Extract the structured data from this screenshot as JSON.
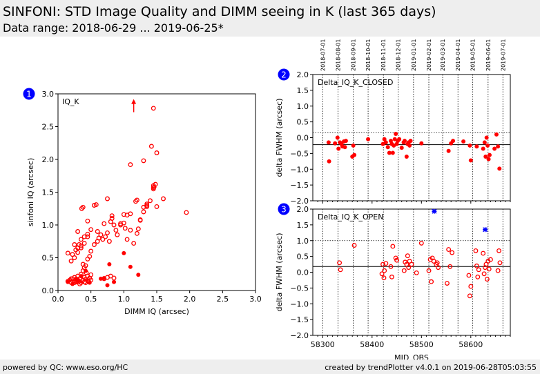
{
  "header": {
    "title": "SINFONI: STD Image Quality and DIMM seeing in K (last 365 days)",
    "subtitle": "Data range: 2018-06-29 ... 2019-06-25*"
  },
  "footer": {
    "left": "powered by QC: www.eso.org/HC",
    "right": "created by trendPlotter v4.0.1 on 2019-06-28T05:03:55"
  },
  "colors": {
    "data": "#ff0000",
    "highlight": "#0000ff",
    "badge": "#0000ff"
  },
  "chart_data": [
    {
      "id": "1",
      "type": "scatter",
      "label": "IQ_K",
      "xlabel": "DIMM IQ (arcsec)",
      "ylabel": "sinfoni IQ (arcsec)",
      "xlim": [
        0,
        3
      ],
      "ylim": [
        0,
        3
      ],
      "xticks": [
        "0.0",
        "0.5",
        "1.0",
        "1.5",
        "2.0",
        "2.5",
        "3.0"
      ],
      "yticks": [
        "0.0",
        "0.5",
        "1.0",
        "1.5",
        "2.0",
        "2.5",
        "3.0"
      ],
      "series": [
        {
          "marker": "open-circle",
          "x": [
            0.15,
            0.18,
            0.2,
            0.22,
            0.25,
            0.25,
            0.28,
            0.3,
            0.3,
            0.32,
            0.33,
            0.35,
            0.35,
            0.37,
            0.38,
            0.4,
            0.4,
            0.42,
            0.43,
            0.45,
            0.45,
            0.47,
            0.48,
            0.5,
            0.5,
            0.2,
            0.22,
            0.25,
            0.27,
            0.3,
            0.32,
            0.35,
            0.38,
            0.4,
            0.42,
            0.45,
            0.48,
            0.5,
            0.15,
            0.25,
            0.3,
            0.35,
            0.4,
            0.45,
            0.55,
            0.6,
            0.62,
            0.65,
            0.68,
            0.7,
            0.72,
            0.75,
            0.78,
            0.8,
            0.82,
            0.85,
            0.88,
            0.9,
            0.95,
            1.0,
            1.02,
            1.05,
            1.1,
            1.15,
            1.2,
            1.22,
            1.25,
            1.3,
            1.35,
            1.4,
            1.45,
            1.48,
            0.3,
            0.35,
            0.4,
            0.45,
            0.5,
            0.55,
            0.6,
            0.7,
            0.75,
            0.8,
            0.85,
            0.38,
            0.45,
            0.58,
            0.75,
            0.82,
            0.95,
            1.0,
            1.05,
            1.1,
            1.18,
            1.2,
            1.25,
            1.3,
            1.35,
            1.45,
            1.5,
            1.6,
            1.95,
            0.36,
            1.3,
            1.35,
            1.42,
            1.45,
            1.46,
            1.5,
            1.1,
            1.45,
            0.2,
            0.25,
            0.28,
            0.33,
            0.38,
            0.42,
            0.46
          ],
          "y": [
            0.14,
            0.16,
            0.12,
            0.18,
            0.15,
            0.2,
            0.13,
            0.16,
            0.22,
            0.14,
            0.18,
            0.12,
            0.25,
            0.15,
            0.3,
            0.13,
            0.2,
            0.17,
            0.27,
            0.15,
            0.22,
            0.13,
            0.19,
            0.16,
            0.24,
            0.45,
            0.55,
            0.5,
            0.62,
            0.58,
            0.7,
            0.65,
            0.4,
            0.35,
            0.38,
            0.48,
            0.52,
            0.6,
            0.57,
            0.7,
            0.65,
            0.68,
            0.72,
            0.82,
            0.7,
            0.75,
            0.8,
            0.85,
            0.78,
            1.02,
            0.82,
            0.88,
            0.75,
            1.05,
            1.1,
            1.0,
            0.92,
            0.85,
            1.02,
            1.16,
            0.95,
            0.78,
            0.92,
            0.72,
            0.87,
            0.94,
            1.07,
            1.2,
            1.28,
            1.37,
            1.55,
            1.62,
            0.9,
            0.78,
            0.82,
            0.86,
            0.93,
            1.3,
            0.9,
            0.18,
            0.2,
            0.22,
            0.19,
            1.27,
            1.06,
            1.31,
            1.4,
            1.14,
            1.0,
            1.03,
            1.15,
            1.17,
            1.36,
            1.38,
            1.08,
            1.27,
            1.32,
            1.57,
            2.1,
            1.4,
            1.19,
            1.25,
            1.98,
            1.3,
            2.2,
            1.6,
            1.58,
            1.28,
            1.92,
            2.78,
            0.18,
            0.12,
            0.14,
            0.1,
            0.16,
            0.12,
            0.14
          ]
        },
        {
          "marker": "filled-dot",
          "x": [
            0.15,
            0.22,
            0.3,
            0.35,
            0.42,
            0.48,
            0.65,
            0.7,
            0.75,
            0.78,
            0.85,
            1.0,
            1.1,
            1.22,
            0.28
          ],
          "y": [
            0.13,
            0.1,
            0.15,
            0.22,
            0.3,
            0.12,
            0.18,
            0.19,
            0.08,
            0.4,
            0.13,
            0.57,
            0.36,
            0.24,
            0.18
          ]
        }
      ],
      "arrow": {
        "x": 1.15,
        "from": 2.72,
        "to": 2.92
      }
    },
    {
      "id": "2",
      "type": "scatter",
      "label": "Delta_IQ_K_CLOSED",
      "ylabel": "delta FWHM (arcsec)",
      "xlim": [
        58280,
        58680
      ],
      "ylim": [
        -2,
        2
      ],
      "yticks": [
        "−2.0",
        "−1.5",
        "−1.0",
        "−0.5",
        "0.0",
        "0.5",
        "1.0",
        "1.5",
        "2.0"
      ],
      "median_line": -0.22,
      "upper_line": 0.15,
      "date_labels": [
        "2018-07-01",
        "2018-08-01",
        "2018-09-01",
        "2018-10-01",
        "2018-11-01",
        "2018-12-01",
        "2019-01-01",
        "2019-02-01",
        "2019-03-01",
        "2019-04-01",
        "2019-05-01",
        "2019-06-01",
        "2019-07-01"
      ],
      "date_mjd": [
        58300,
        58331,
        58362,
        58392,
        58423,
        58453,
        58484,
        58515,
        58543,
        58574,
        58604,
        58635,
        58665
      ],
      "series": [
        {
          "marker": "filled-dot",
          "x": [
            58312,
            58313,
            58325,
            58330,
            58332,
            58335,
            58338,
            58340,
            58343,
            58345,
            58347,
            58360,
            58362,
            58364,
            58392,
            58422,
            58425,
            58428,
            58432,
            58435,
            58438,
            58440,
            58442,
            58444,
            58446,
            58448,
            58450,
            58452,
            58455,
            58460,
            58464,
            58466,
            58470,
            58472,
            58474,
            58476,
            58478,
            58500,
            58555,
            58560,
            58564,
            58585,
            58598,
            58600,
            58612,
            58625,
            58628,
            58630,
            58632,
            58634,
            58636,
            58638,
            58648,
            58652,
            58655,
            58658
          ],
          "y": [
            -0.15,
            -0.75,
            -0.18,
            0.0,
            -0.35,
            -0.15,
            -0.2,
            -0.28,
            -0.12,
            -0.3,
            -0.1,
            -0.6,
            -0.25,
            -0.55,
            -0.05,
            -0.2,
            -0.05,
            -0.15,
            -0.3,
            -0.48,
            -0.1,
            -0.2,
            -0.48,
            -0.25,
            -0.05,
            0.12,
            -0.2,
            -0.1,
            -0.05,
            -0.32,
            -0.15,
            -0.1,
            -0.6,
            -0.2,
            -0.15,
            -0.25,
            -0.1,
            -0.18,
            -0.42,
            -0.18,
            -0.1,
            -0.12,
            -0.25,
            -0.72,
            -0.28,
            -0.35,
            -0.15,
            -0.6,
            0.0,
            -0.25,
            -0.68,
            -0.55,
            -0.35,
            0.1,
            -0.28,
            -0.98
          ]
        }
      ]
    },
    {
      "id": "3",
      "type": "scatter",
      "label": "Delta_IQ_K_OPEN",
      "xlabel": "MJD_OBS",
      "ylabel": "delta FWHM (arcsec)",
      "xlim": [
        58280,
        58680
      ],
      "ylim": [
        -2,
        2
      ],
      "xticks": [
        "58300",
        "58400",
        "58500",
        "58600"
      ],
      "yticks": [
        "−2.0",
        "−1.5",
        "−1.0",
        "−0.5",
        "0.0",
        "0.5",
        "1.0",
        "1.5",
        "2.0"
      ],
      "median_line": 0.18,
      "upper_line": 1.0,
      "series": [
        {
          "marker": "open-circle",
          "x": [
            58334,
            58336,
            58364,
            58420,
            58422,
            58424,
            58425,
            58428,
            58438,
            58440,
            58442,
            58448,
            58450,
            58465,
            58467,
            58470,
            58472,
            58474,
            58476,
            58480,
            58490,
            58500,
            58515,
            58518,
            58520,
            58522,
            58525,
            58530,
            58532,
            58534,
            58552,
            58555,
            58558,
            58562,
            58596,
            58598,
            58600,
            58610,
            58612,
            58614,
            58616,
            58625,
            58627,
            58629,
            58631,
            58633,
            58635,
            58637,
            58640,
            58655,
            58657,
            58659
          ],
          "y": [
            0.3,
            0.08,
            0.85,
            -0.05,
            0.25,
            -0.18,
            0.05,
            0.28,
            0.18,
            -0.15,
            0.82,
            0.45,
            0.38,
            0.05,
            0.32,
            0.25,
            0.52,
            0.15,
            0.35,
            0.25,
            -0.02,
            0.92,
            0.05,
            0.4,
            -0.3,
            0.45,
            0.35,
            0.25,
            0.3,
            0.15,
            -0.35,
            0.72,
            0.18,
            0.62,
            -0.1,
            -0.75,
            -0.45,
            0.68,
            0.2,
            -0.15,
            0.08,
            0.6,
            -0.05,
            0.15,
            0.25,
            -0.22,
            0.35,
            0.1,
            0.4,
            0.05,
            0.68,
            0.3
          ]
        },
        {
          "marker": "blue-cross",
          "x": [
            58526,
            58629
          ],
          "y": [
            1.93,
            1.35
          ]
        }
      ]
    }
  ]
}
